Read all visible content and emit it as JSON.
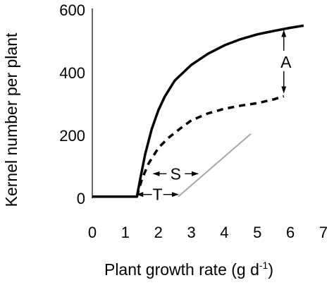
{
  "chart_data": {
    "type": "line",
    "xlabel": "Plant growth rate (g d",
    "xlabel_superscript": "-1",
    "xlabel_close": ")",
    "ylabel": "Kernel number per plant",
    "xlim": [
      0,
      7
    ],
    "ylim": [
      0,
      600
    ],
    "x_ticks": [
      "0",
      "1",
      "2",
      "3",
      "4",
      "5",
      "6",
      "7"
    ],
    "y_ticks": [
      "0",
      "200",
      "400",
      "600"
    ],
    "grid": false,
    "legend": "none",
    "series": [
      {
        "style": "solid-thick",
        "color": "#000000",
        "x": [
          0.0,
          1.35,
          1.45,
          1.6,
          1.8,
          2.0,
          2.2,
          2.5,
          3.0,
          3.5,
          4.0,
          4.5,
          5.0,
          5.5,
          6.0,
          6.4
        ],
        "y": [
          5,
          5,
          60,
          140,
          220,
          280,
          325,
          375,
          425,
          460,
          487,
          507,
          522,
          533,
          543,
          550
        ]
      },
      {
        "style": "dashed-thick",
        "color": "#000000",
        "x": [
          1.35,
          1.5,
          1.7,
          2.0,
          2.3,
          2.7,
          3.0,
          3.5,
          4.0,
          4.5,
          5.0,
          5.5,
          5.8
        ],
        "y": [
          5,
          60,
          110,
          160,
          192,
          225,
          248,
          270,
          285,
          295,
          303,
          315,
          325
        ]
      },
      {
        "style": "solid-thin",
        "color": "#a6a6a6",
        "x": [
          2.6,
          4.8
        ],
        "y": [
          5,
          205
        ]
      }
    ],
    "annotations": [
      {
        "label": "A",
        "type": "double-arrow-vertical",
        "x": 5.8,
        "y_from": 325,
        "y_to": 543
      },
      {
        "label": "S",
        "type": "double-arrow-horizontal",
        "y": 78,
        "x_from": 1.85,
        "x_to": 3.2
      },
      {
        "label": "T",
        "type": "double-arrow-horizontal",
        "y": 12,
        "x_from": 1.35,
        "x_to": 2.6
      }
    ]
  }
}
